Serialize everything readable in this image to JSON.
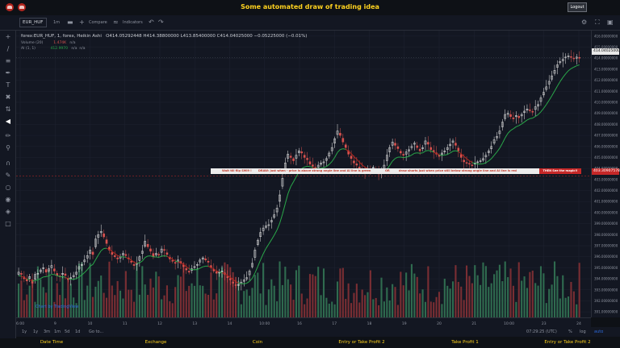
{
  "app": {
    "title": "Some automated draw of trading idea",
    "logout_label": "Logout",
    "brand_icons": [
      "redhat-icon",
      "redhat-icon"
    ]
  },
  "toolbar": {
    "symbol": "EUR_HUF",
    "interval": "1m",
    "compare_label": "Compare",
    "indicators_label": "Indicators"
  },
  "legend": {
    "main": "forex:EUR_HUF, 1, forex, Heikin Ashi",
    "open": "O414.05292448",
    "high": "H414.38800000",
    "low": "L413.85400000",
    "close": "C414.04025000",
    "change": "−0.05225000 (−0.01%)",
    "volume_label": "Volume (20)",
    "volume_value": "1.474K",
    "volume_na": "n/a",
    "ai_label": "AI (1, 1)",
    "ai_value": "412.9970",
    "ai_na1": "n/a",
    "ai_na2": "n/a"
  },
  "annotation": {
    "text1": "Wait till flip SMI9 !",
    "text2": "DRAW: just when - price is above strong angle line and AI line is green",
    "text3": "OR",
    "text4": "draw shorts just when price still below strong angle line and AI line is red",
    "button": "THEN See the magic!!"
  },
  "price_axis": {
    "labels": [
      "416.00000000",
      "415.00000000",
      "414.00000000",
      "413.00000000",
      "412.00000000",
      "411.00000000",
      "410.00000000",
      "409.00000000",
      "408.00000000",
      "407.00000000",
      "406.00000000",
      "405.00000000",
      "404.00000000",
      "403.00000000",
      "402.00000000",
      "401.00000000",
      "400.00000000",
      "399.00000000",
      "398.00000000",
      "397.00000000",
      "396.00000000",
      "395.00000000",
      "394.00000000",
      "393.00000000",
      "392.00000000",
      "391.00000000"
    ],
    "last_price": "414.04025000",
    "crosshair_price": "403.30907578"
  },
  "time_axis": {
    "labels": [
      "6:00",
      "9",
      "10",
      "11",
      "12",
      "13",
      "14",
      "10:00",
      "16",
      "17",
      "18",
      "19",
      "20",
      "21",
      "10:00",
      "23",
      "24"
    ]
  },
  "bottom_bar": {
    "ranges": [
      "1y",
      "1y",
      "3m",
      "1m",
      "5d",
      "1d"
    ],
    "goto": "Go to...",
    "time": "07:29:25 (UTC)",
    "percent": "%",
    "log": "log",
    "auto": "auto"
  },
  "watermark": "Chart by TradingView",
  "footer": {
    "columns": [
      "Date Time",
      "Exchange",
      "Coin",
      "Entry or Take Profit 2",
      "Take Profit 1",
      "Entry or Take Profit 2"
    ]
  },
  "chart_data": {
    "type": "candlestick",
    "style": "Heikin Ashi",
    "symbol": "EUR_HUF",
    "ylim": [
      390.5,
      416.5
    ],
    "colors": {
      "up": "#e8e8e8",
      "down": "#d9534f",
      "ai_line_up": "#2aa84a",
      "ai_line_down": "#b3261e",
      "vol_up": "#2f6b4f",
      "vol_down": "#7a2e33"
    },
    "close_path": [
      394.6,
      394.4,
      394.0,
      393.8,
      394.2,
      393.6,
      394.4,
      394.5,
      394.8,
      395.0,
      394.6,
      394.9,
      395.2,
      394.7,
      394.3,
      394.2,
      394.5,
      394.3,
      393.9,
      394.1,
      394.3,
      394.6,
      395.1,
      395.3,
      395.7,
      396.1,
      396.6,
      396.2,
      397.6,
      398.0,
      398.3,
      397.8,
      397.2,
      396.6,
      396.2,
      396.0,
      395.8,
      396.0,
      396.3,
      396.1,
      395.8,
      395.5,
      395.2,
      395.4,
      396.0,
      396.5,
      397.4,
      396.9,
      396.5,
      396.0,
      396.3,
      396.2,
      396.7,
      396.6,
      396.2,
      395.8,
      395.6,
      395.4,
      395.7,
      395.4,
      395.1,
      394.8,
      394.6,
      394.9,
      395.1,
      395.3,
      395.7,
      395.9,
      395.7,
      395.5,
      395.0,
      394.7,
      394.5,
      394.6,
      394.7,
      394.4,
      394.1,
      393.9,
      393.6,
      393.4,
      393.5,
      393.7,
      393.9,
      394.1,
      394.7,
      395.4,
      396.6,
      397.5,
      398.2,
      398.6,
      398.8,
      398.9,
      399.3,
      399.8,
      400.4,
      401.6,
      403.1,
      404.5,
      405.3,
      405.0,
      404.7,
      405.2,
      405.6,
      405.4,
      405.0,
      404.8,
      404.4,
      404.2,
      404.0,
      404.3,
      404.5,
      404.6,
      404.9,
      405.4,
      405.9,
      406.7,
      407.4,
      407.0,
      406.4,
      405.9,
      405.3,
      404.9,
      404.5,
      404.3,
      404.0,
      403.8,
      403.7,
      404.0,
      403.9,
      404.1,
      403.8,
      403.5,
      403.7,
      404.3,
      405.2,
      405.9,
      406.4,
      406.1,
      405.8,
      405.4,
      405.2,
      405.5,
      405.7,
      406.0,
      406.3,
      405.9,
      405.6,
      405.9,
      406.5,
      406.2,
      405.7,
      405.5,
      405.3,
      405.1,
      405.4,
      405.6,
      405.9,
      406.2,
      406.5,
      406.1,
      405.6,
      405.0,
      404.6,
      404.5,
      404.4,
      404.3,
      404.5,
      404.6,
      404.7,
      404.9,
      405.2,
      405.6,
      406.0,
      406.6,
      406.9,
      407.4,
      408.2,
      408.9,
      409.0,
      408.7,
      408.5,
      408.8,
      408.6,
      408.9,
      409.2,
      409.4,
      409.3,
      409.1,
      409.6,
      409.8,
      410.4,
      410.9,
      411.4,
      411.9,
      412.4,
      412.9,
      413.4,
      413.7,
      413.9,
      414.1,
      414.2,
      414.1,
      414.0,
      414.1,
      414.04
    ]
  }
}
